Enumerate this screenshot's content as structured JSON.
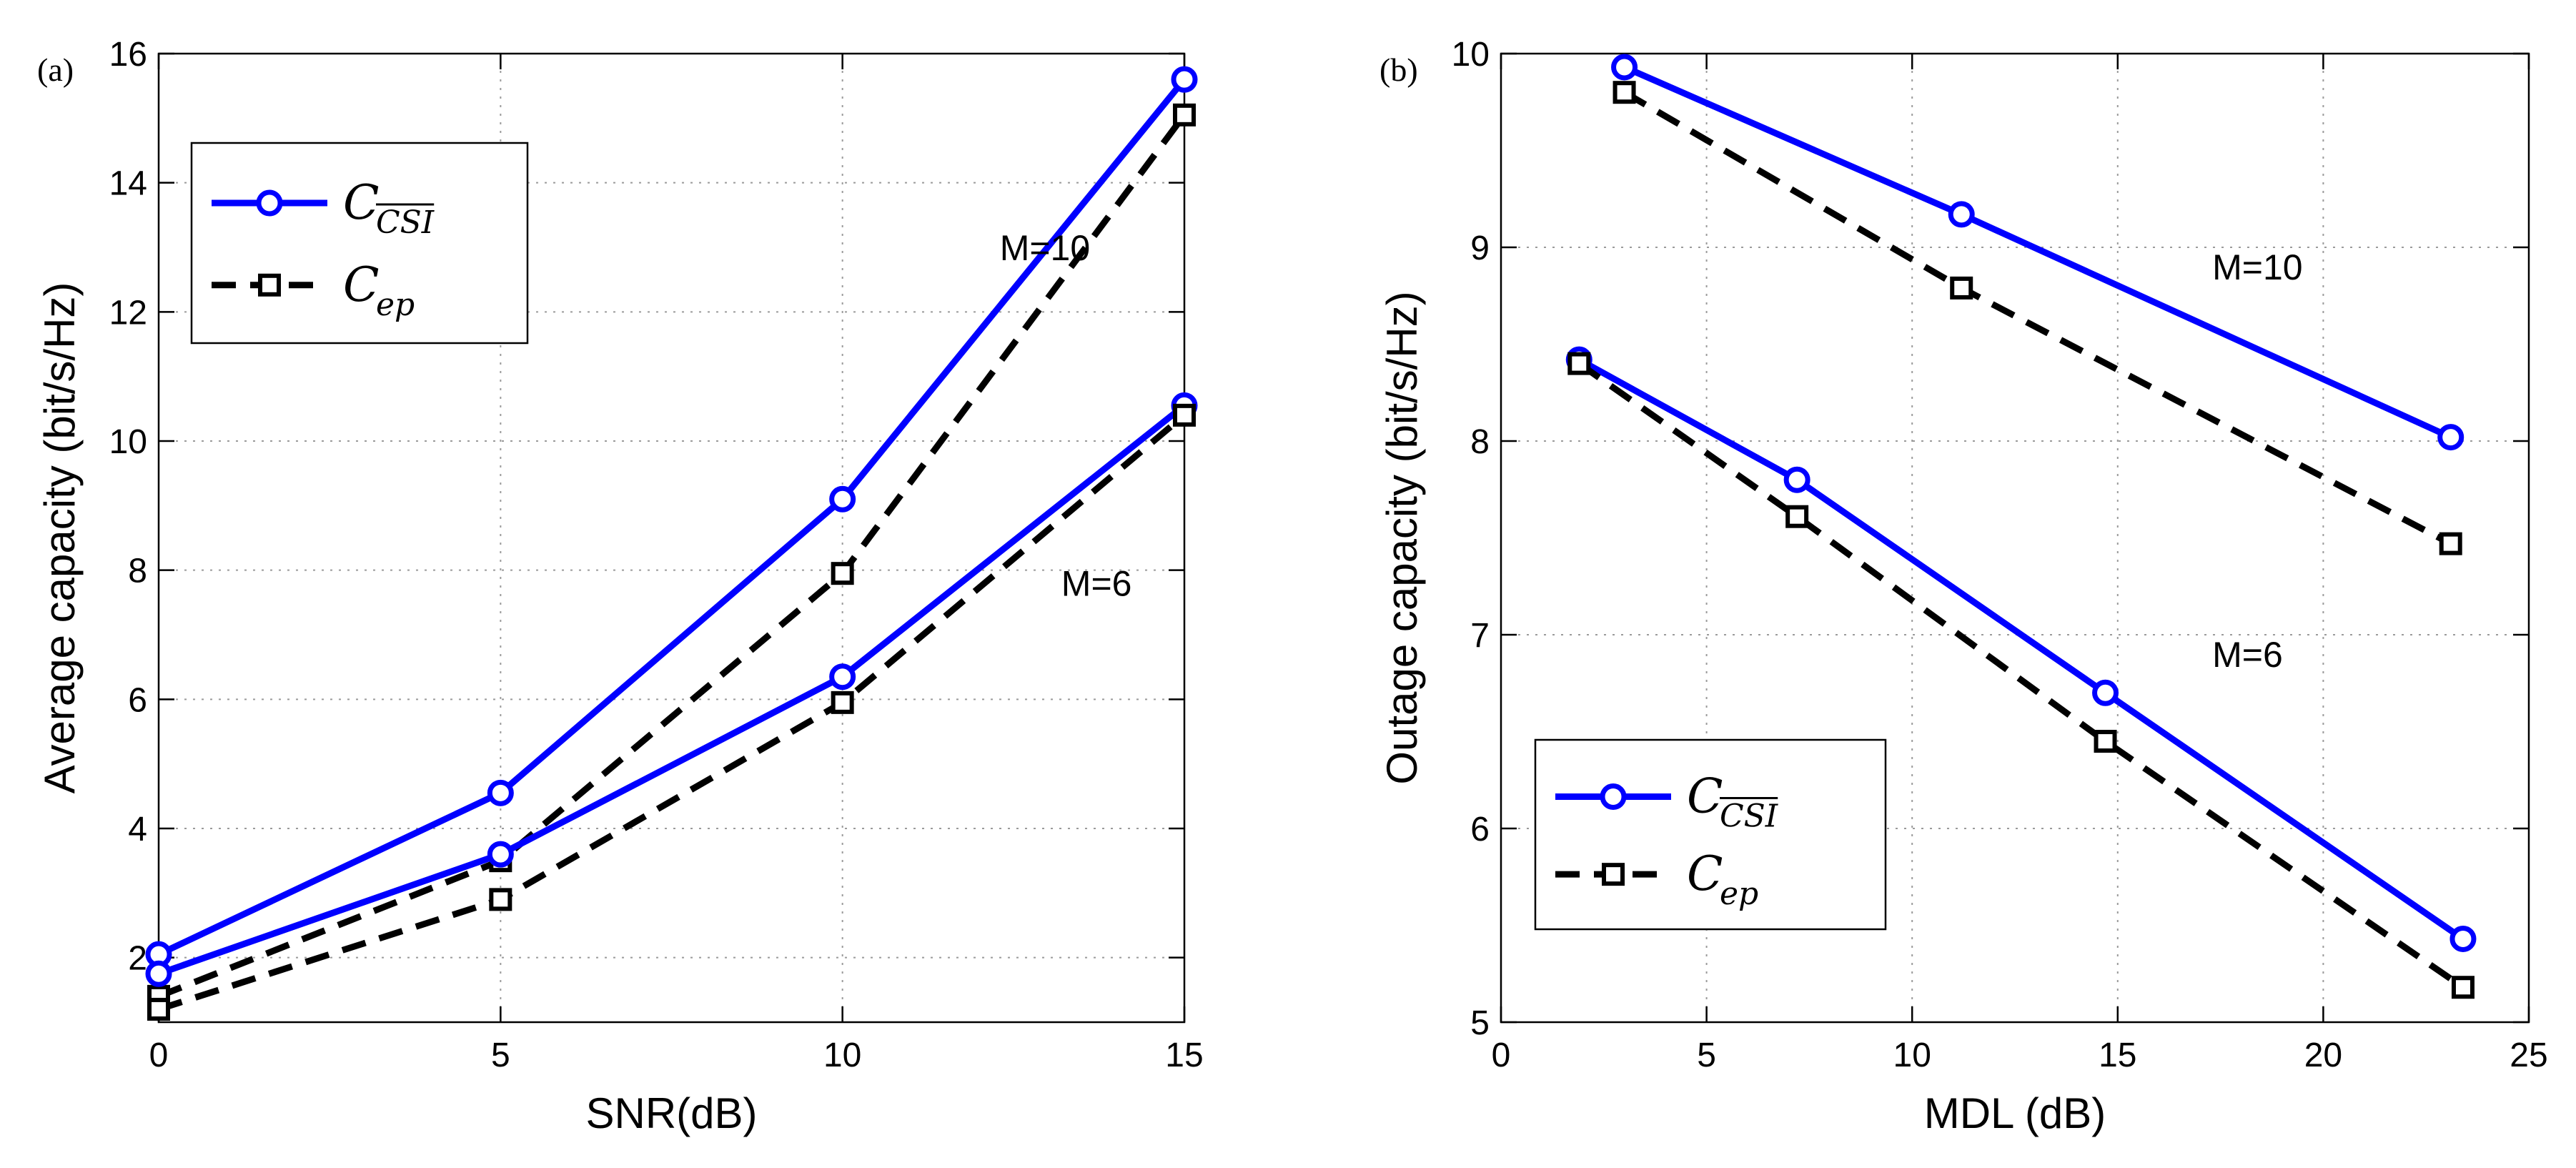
{
  "chart_data": [
    {
      "type": "line",
      "panel_label": "(a)",
      "title": "",
      "xlabel": "SNR(dB)",
      "ylabel": "Average capacity (bit/s/Hz)",
      "xlim": [
        0,
        15
      ],
      "ylim": [
        1,
        16
      ],
      "xticks": [
        0,
        5,
        10,
        15
      ],
      "yticks": [
        2,
        4,
        6,
        8,
        10,
        12,
        14,
        16
      ],
      "grid": true,
      "legend_position": "top-left",
      "legend": [
        {
          "symbol": "C",
          "subscript": "CSI",
          "overline": true,
          "style": "solid-circle"
        },
        {
          "symbol": "C",
          "subscript": "ep",
          "overline": false,
          "style": "dashed-square"
        }
      ],
      "series": [
        {
          "name": "C_CSI, M=10",
          "color": "#0000ff",
          "dash": false,
          "marker": "circle",
          "x": [
            0,
            5,
            10,
            15
          ],
          "y": [
            2.05,
            4.55,
            9.1,
            15.6
          ]
        },
        {
          "name": "C_ep, M=10",
          "color": "#000000",
          "dash": true,
          "marker": "square",
          "x": [
            0,
            5,
            10,
            15
          ],
          "y": [
            1.4,
            3.5,
            7.95,
            15.05
          ]
        },
        {
          "name": "C_CSI, M=6",
          "color": "#0000ff",
          "dash": false,
          "marker": "circle",
          "x": [
            0,
            5,
            10,
            15
          ],
          "y": [
            1.75,
            3.6,
            6.35,
            10.55
          ]
        },
        {
          "name": "C_ep, M=6",
          "color": "#000000",
          "dash": true,
          "marker": "square",
          "x": [
            0,
            5,
            10,
            15
          ],
          "y": [
            1.2,
            2.9,
            5.95,
            10.4
          ]
        }
      ],
      "annotations": [
        {
          "text": "M=10",
          "x": 12.3,
          "y": 13.0
        },
        {
          "text": "M=6",
          "x": 13.2,
          "y": 7.8
        }
      ]
    },
    {
      "type": "line",
      "panel_label": "(b)",
      "title": "",
      "xlabel": "MDL (dB)",
      "ylabel": "Outage capacity (bit/s/Hz)",
      "xlim": [
        0,
        25
      ],
      "ylim": [
        5,
        10
      ],
      "xticks": [
        0,
        5,
        10,
        15,
        20,
        25
      ],
      "yticks": [
        5,
        6,
        7,
        8,
        9,
        10
      ],
      "grid": true,
      "legend_position": "bottom-left",
      "legend": [
        {
          "symbol": "C",
          "subscript": "CSI",
          "overline": true,
          "style": "solid-circle"
        },
        {
          "symbol": "C",
          "subscript": "ep",
          "overline": false,
          "style": "dashed-square"
        }
      ],
      "series": [
        {
          "name": "C_CSI, M=10",
          "color": "#0000ff",
          "dash": false,
          "marker": "circle",
          "x": [
            3,
            11.2,
            23.1
          ],
          "y": [
            9.93,
            9.17,
            8.02
          ]
        },
        {
          "name": "C_ep, M=10",
          "color": "#000000",
          "dash": true,
          "marker": "square",
          "x": [
            3,
            11.2,
            23.1
          ],
          "y": [
            9.8,
            8.79,
            7.47
          ]
        },
        {
          "name": "C_CSI, M=6",
          "color": "#0000ff",
          "dash": false,
          "marker": "circle",
          "x": [
            1.9,
            7.2,
            14.7,
            23.4
          ],
          "y": [
            8.42,
            7.8,
            6.7,
            5.43
          ]
        },
        {
          "name": "C_ep, M=6",
          "color": "#000000",
          "dash": true,
          "marker": "square",
          "x": [
            1.9,
            7.2,
            14.7,
            23.4
          ],
          "y": [
            8.4,
            7.61,
            6.45,
            5.18
          ]
        }
      ],
      "annotations": [
        {
          "text": "M=10",
          "x": 17.3,
          "y": 8.9
        },
        {
          "text": "M=6",
          "x": 17.3,
          "y": 6.9
        }
      ]
    }
  ]
}
